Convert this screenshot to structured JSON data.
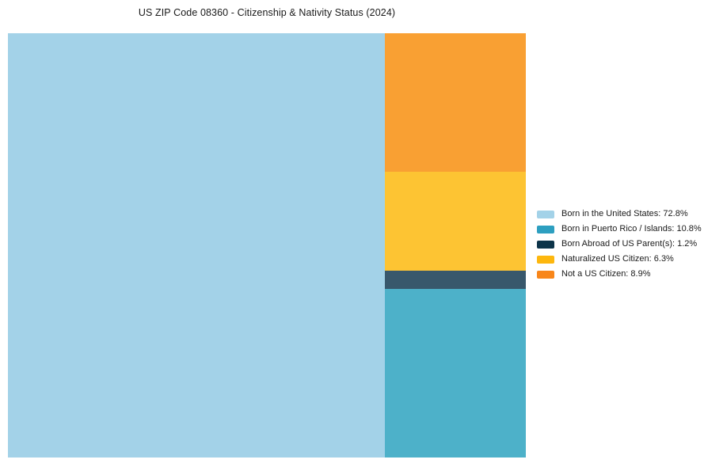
{
  "title": "US ZIP Code 08360 - Citizenship & Nativity Status (2024)",
  "chart_data": {
    "type": "treemap",
    "title": "US ZIP Code 08360 - Citizenship & Nativity Status (2024)",
    "unit": "%",
    "legend_position": "right",
    "background_color": "#ffffff",
    "series": [
      {
        "label": "Born in the United States",
        "value": 72.8,
        "legend_text": "Born in the United States: 72.8%",
        "legend_color": "#a3d2e8",
        "block_color": "#a3d2e8"
      },
      {
        "label": "Born in Puerto Rico / Islands",
        "value": 10.8,
        "legend_text": "Born in Puerto Rico / Islands: 10.8%",
        "legend_color": "#2d9fc0",
        "block_color": "#4db1c9"
      },
      {
        "label": "Born Abroad of US Parent(s)",
        "value": 1.2,
        "legend_text": "Born Abroad of US Parent(s): 1.2%",
        "legend_color": "#0d3449",
        "block_color": "#38586c"
      },
      {
        "label": "Naturalized US Citizen",
        "value": 6.3,
        "legend_text": "Naturalized US Citizen: 6.3%",
        "legend_color": "#fdb70e",
        "block_color": "#fdc433"
      },
      {
        "label": "Not a US Citizen",
        "value": 8.9,
        "legend_text": "Not a US Citizen: 8.9%",
        "legend_color": "#f8861a",
        "block_color": "#f9a033"
      }
    ],
    "layout": {
      "main_index": 0,
      "right_column_order": [
        4,
        3,
        2,
        1
      ],
      "legend_order": [
        0,
        1,
        2,
        3,
        4
      ]
    }
  }
}
